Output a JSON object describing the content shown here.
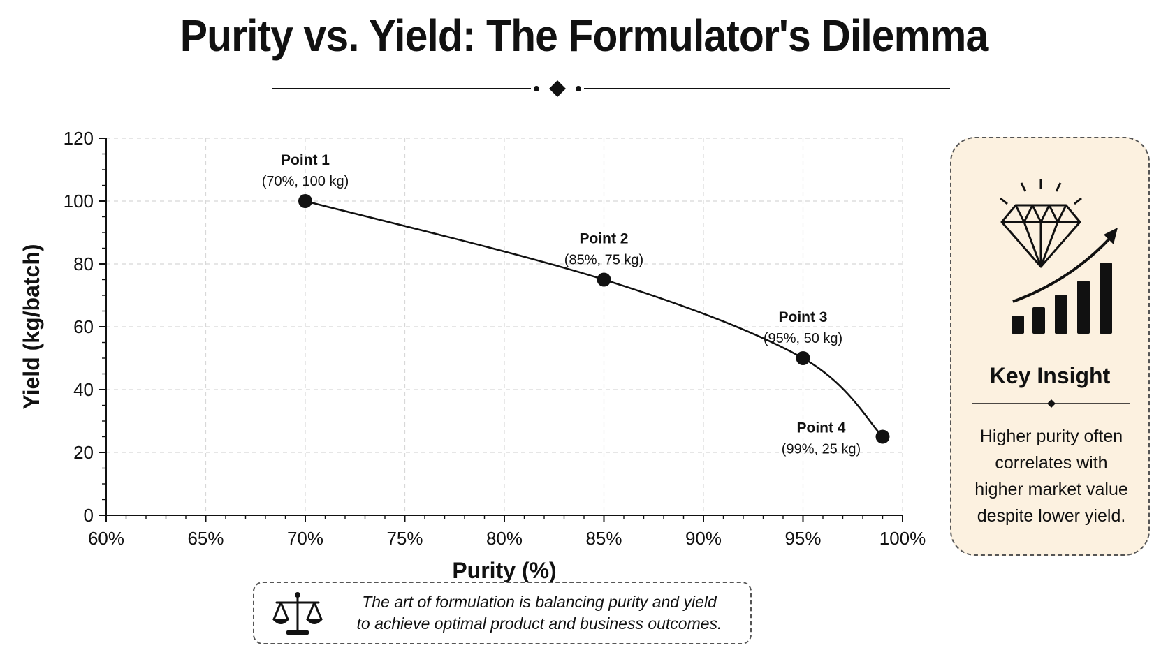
{
  "title": "Purity vs. Yield: The Formulator's Dilemma",
  "chart_data": {
    "type": "line",
    "xlabel": "Purity (%)",
    "ylabel": "Yield (kg/batch)",
    "xlim": [
      60,
      100
    ],
    "ylim": [
      0,
      120
    ],
    "x_ticks": [
      "60%",
      "65%",
      "70%",
      "75%",
      "80%",
      "85%",
      "90%",
      "95%",
      "100%"
    ],
    "y_ticks": [
      "0",
      "20",
      "40",
      "60",
      "80",
      "100",
      "120"
    ],
    "grid": true,
    "line_color": "#111111",
    "points": [
      {
        "name": "Point 1",
        "label": "(70%, 100 kg)",
        "x": 70,
        "y": 100
      },
      {
        "name": "Point 2",
        "label": "(85%, 75 kg)",
        "x": 85,
        "y": 75
      },
      {
        "name": "Point 3",
        "label": "(95%, 50 kg)",
        "x": 95,
        "y": 50
      },
      {
        "name": "Point 4",
        "label": "(99%, 25 kg)",
        "x": 99,
        "y": 25
      }
    ]
  },
  "insight": {
    "title": "Key Insight",
    "lines": [
      "Higher purity often",
      "correlates with",
      "higher market value",
      "despite lower yield."
    ],
    "background": "#fcf1e0",
    "icons": [
      "diamond-icon",
      "growth-bar-chart-icon"
    ]
  },
  "footer": {
    "lines": [
      "The art of formulation is balancing purity and yield",
      "to achieve optimal product and business outcomes."
    ],
    "icon": "balance-scale-icon"
  }
}
